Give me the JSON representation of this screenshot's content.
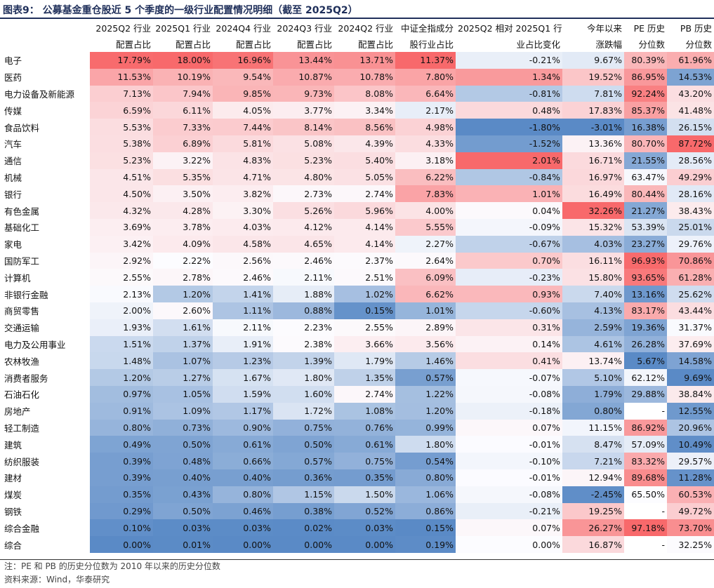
{
  "title": "图表9：  公募基金重仓股近 5 个季度的一级行业配置情况明细（截至 2025Q2）",
  "headers": [
    [
      "",
      ""
    ],
    [
      "2025Q2 行业",
      "配置占比"
    ],
    [
      "2025Q1 行业",
      "配置占比"
    ],
    [
      "2024Q4 行业",
      "配置占比"
    ],
    [
      "2024Q3 行业",
      "配置占比"
    ],
    [
      "2024Q2 行业",
      "配置占比"
    ],
    [
      "中证全指成分",
      "股行业占比"
    ],
    [
      "2025Q2 相对 2025Q1 行",
      "业占比变化"
    ],
    [
      "今年以来",
      "涨跌幅"
    ],
    [
      "PE 历史",
      "分位数"
    ],
    [
      "PB 历史",
      "分位数"
    ]
  ],
  "rows": [
    [
      "电子",
      "17.79%",
      "18.00%",
      "16.96%",
      "13.44%",
      "13.71%",
      "11.37%",
      "-0.21%",
      "9.67%",
      "80.39%",
      "61.96%"
    ],
    [
      "医药",
      "11.53%",
      "10.19%",
      "9.54%",
      "10.87%",
      "10.78%",
      "7.80%",
      "1.34%",
      "19.52%",
      "86.95%",
      "14.53%"
    ],
    [
      "电力设备及新能源",
      "7.13%",
      "7.94%",
      "9.85%",
      "9.73%",
      "8.08%",
      "6.64%",
      "-0.81%",
      "7.81%",
      "92.24%",
      "43.20%"
    ],
    [
      "传媒",
      "6.59%",
      "6.11%",
      "4.05%",
      "3.77%",
      "3.34%",
      "2.17%",
      "0.48%",
      "17.83%",
      "85.37%",
      "41.48%"
    ],
    [
      "食品饮料",
      "5.53%",
      "7.33%",
      "7.44%",
      "8.14%",
      "8.56%",
      "4.98%",
      "-1.80%",
      "-3.01%",
      "16.38%",
      "26.15%"
    ],
    [
      "汽车",
      "5.38%",
      "6.89%",
      "5.81%",
      "5.08%",
      "4.39%",
      "4.33%",
      "-1.52%",
      "13.36%",
      "80.70%",
      "87.72%"
    ],
    [
      "通信",
      "5.23%",
      "3.22%",
      "4.83%",
      "5.23%",
      "5.40%",
      "3.18%",
      "2.01%",
      "16.71%",
      "21.55%",
      "28.56%"
    ],
    [
      "机械",
      "4.51%",
      "5.35%",
      "4.71%",
      "4.80%",
      "5.05%",
      "6.22%",
      "-0.84%",
      "16.97%",
      "63.47%",
      "49.29%"
    ],
    [
      "银行",
      "4.50%",
      "3.50%",
      "3.82%",
      "2.73%",
      "2.74%",
      "7.83%",
      "1.01%",
      "16.49%",
      "80.44%",
      "28.16%"
    ],
    [
      "有色金属",
      "4.32%",
      "4.28%",
      "3.30%",
      "5.26%",
      "5.96%",
      "4.00%",
      "0.04%",
      "32.26%",
      "21.27%",
      "38.43%"
    ],
    [
      "基础化工",
      "3.69%",
      "3.78%",
      "4.03%",
      "4.12%",
      "4.14%",
      "5.55%",
      "-0.09%",
      "15.32%",
      "53.39%",
      "25.01%"
    ],
    [
      "家电",
      "3.42%",
      "4.09%",
      "4.58%",
      "4.65%",
      "4.14%",
      "2.27%",
      "-0.67%",
      "4.03%",
      "23.27%",
      "29.76%"
    ],
    [
      "国防军工",
      "2.92%",
      "2.22%",
      "2.56%",
      "2.46%",
      "2.37%",
      "2.64%",
      "0.70%",
      "16.11%",
      "96.93%",
      "70.86%"
    ],
    [
      "计算机",
      "2.55%",
      "2.78%",
      "2.46%",
      "2.11%",
      "2.51%",
      "6.09%",
      "-0.23%",
      "15.80%",
      "93.65%",
      "61.28%"
    ],
    [
      "非银行金融",
      "2.13%",
      "1.20%",
      "1.41%",
      "1.88%",
      "1.02%",
      "6.62%",
      "0.93%",
      "7.40%",
      "13.16%",
      "25.62%"
    ],
    [
      "商贸零售",
      "2.00%",
      "2.60%",
      "1.11%",
      "0.88%",
      "0.15%",
      "1.01%",
      "-0.60%",
      "4.13%",
      "83.17%",
      "43.44%"
    ],
    [
      "交通运输",
      "1.93%",
      "1.61%",
      "2.11%",
      "2.23%",
      "2.55%",
      "2.89%",
      "0.31%",
      "2.59%",
      "19.36%",
      "31.37%"
    ],
    [
      "电力及公用事业",
      "1.51%",
      "1.37%",
      "1.91%",
      "2.38%",
      "3.66%",
      "3.56%",
      "0.14%",
      "4.61%",
      "26.28%",
      "37.69%"
    ],
    [
      "农林牧渔",
      "1.48%",
      "1.07%",
      "1.23%",
      "1.39%",
      "1.79%",
      "1.46%",
      "0.41%",
      "13.74%",
      "5.67%",
      "14.58%"
    ],
    [
      "消费者服务",
      "1.20%",
      "1.27%",
      "1.67%",
      "1.80%",
      "1.35%",
      "0.57%",
      "-0.07%",
      "5.10%",
      "62.12%",
      "9.69%"
    ],
    [
      "石油石化",
      "0.97%",
      "1.05%",
      "1.59%",
      "1.60%",
      "2.74%",
      "1.22%",
      "-0.08%",
      "1.79%",
      "29.88%",
      "38.84%"
    ],
    [
      "房地产",
      "0.91%",
      "1.09%",
      "1.17%",
      "1.72%",
      "1.08%",
      "1.20%",
      "-0.18%",
      "0.80%",
      "-",
      "12.55%"
    ],
    [
      "轻工制造",
      "0.80%",
      "0.73%",
      "0.90%",
      "0.75%",
      "0.76%",
      "0.99%",
      "0.07%",
      "11.15%",
      "86.92%",
      "20.96%"
    ],
    [
      "建筑",
      "0.49%",
      "0.50%",
      "0.61%",
      "0.50%",
      "0.61%",
      "1.80%",
      "-0.01%",
      "8.47%",
      "57.09%",
      "10.49%"
    ],
    [
      "纺织服装",
      "0.39%",
      "0.48%",
      "0.66%",
      "0.57%",
      "0.75%",
      "0.54%",
      "-0.10%",
      "7.21%",
      "83.32%",
      "29.57%"
    ],
    [
      "建材",
      "0.39%",
      "0.40%",
      "0.40%",
      "0.36%",
      "0.35%",
      "0.80%",
      "-0.01%",
      "12.94%",
      "89.68%",
      "11.28%"
    ],
    [
      "煤炭",
      "0.35%",
      "0.43%",
      "0.80%",
      "1.15%",
      "1.50%",
      "1.06%",
      "-0.08%",
      "-2.45%",
      "65.50%",
      "60.53%"
    ],
    [
      "钢铁",
      "0.29%",
      "0.50%",
      "0.46%",
      "0.38%",
      "0.52%",
      "0.86%",
      "-0.21%",
      "19.25%",
      "-",
      "49.72%"
    ],
    [
      "综合金融",
      "0.10%",
      "0.03%",
      "0.03%",
      "0.02%",
      "0.03%",
      "0.15%",
      "0.07%",
      "26.27%",
      "97.18%",
      "73.70%"
    ],
    [
      "综合",
      "0.00%",
      "0.01%",
      "0.00%",
      "0.00%",
      "0.00%",
      "0.19%",
      "0.00%",
      "16.87%",
      "-",
      "32.25%"
    ]
  ],
  "notes": [
    "注：PE 和 PB 的历史分位数为 2010 年以来的历史分位数",
    "资料来源：Wind，华泰研究"
  ],
  "colors": {
    "high": "#f8696b",
    "mid": "#fcfcff",
    "low": "#5a8ac6"
  }
}
